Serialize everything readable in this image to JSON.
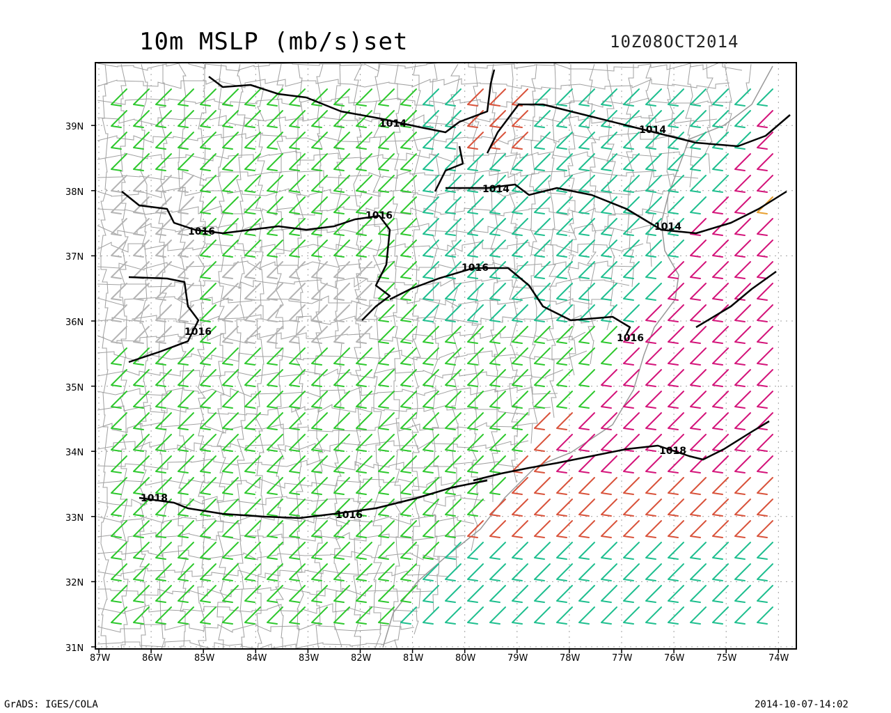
{
  "header": {
    "title": "10m MSLP (mb/s)set",
    "timestamp": "10Z08OCT2014"
  },
  "footer": {
    "left": "GrADS: IGES/COLA",
    "right": "2014-10-07-14:02"
  },
  "map": {
    "lon_range": [
      -87,
      -74
    ],
    "lat_range": [
      31,
      39.9
    ],
    "x_ticks": [
      "87W",
      "86W",
      "85W",
      "84W",
      "83W",
      "82W",
      "81W",
      "80W",
      "79W",
      "78W",
      "77W",
      "76W",
      "75W",
      "74W"
    ],
    "y_ticks": [
      "31N",
      "32N",
      "33N",
      "34N",
      "35N",
      "36N",
      "37N",
      "38N",
      "39N"
    ],
    "contour_labels": [
      "1014",
      "1014",
      "1014",
      "1014",
      "1016",
      "1016",
      "1016",
      "1016",
      "1016",
      "1018",
      "1018",
      "1016"
    ],
    "colors": {
      "frame": "#000000",
      "county_lines": "#a0a0a0",
      "grid": "#a0a0a0",
      "barb_gray": "#b4b4b4",
      "barb_green": "#2ec82e",
      "barb_teal": "#1fbf8f",
      "barb_red": "#d9533b",
      "barb_magenta": "#d4147a",
      "barb_orange": "#e8a030"
    }
  }
}
